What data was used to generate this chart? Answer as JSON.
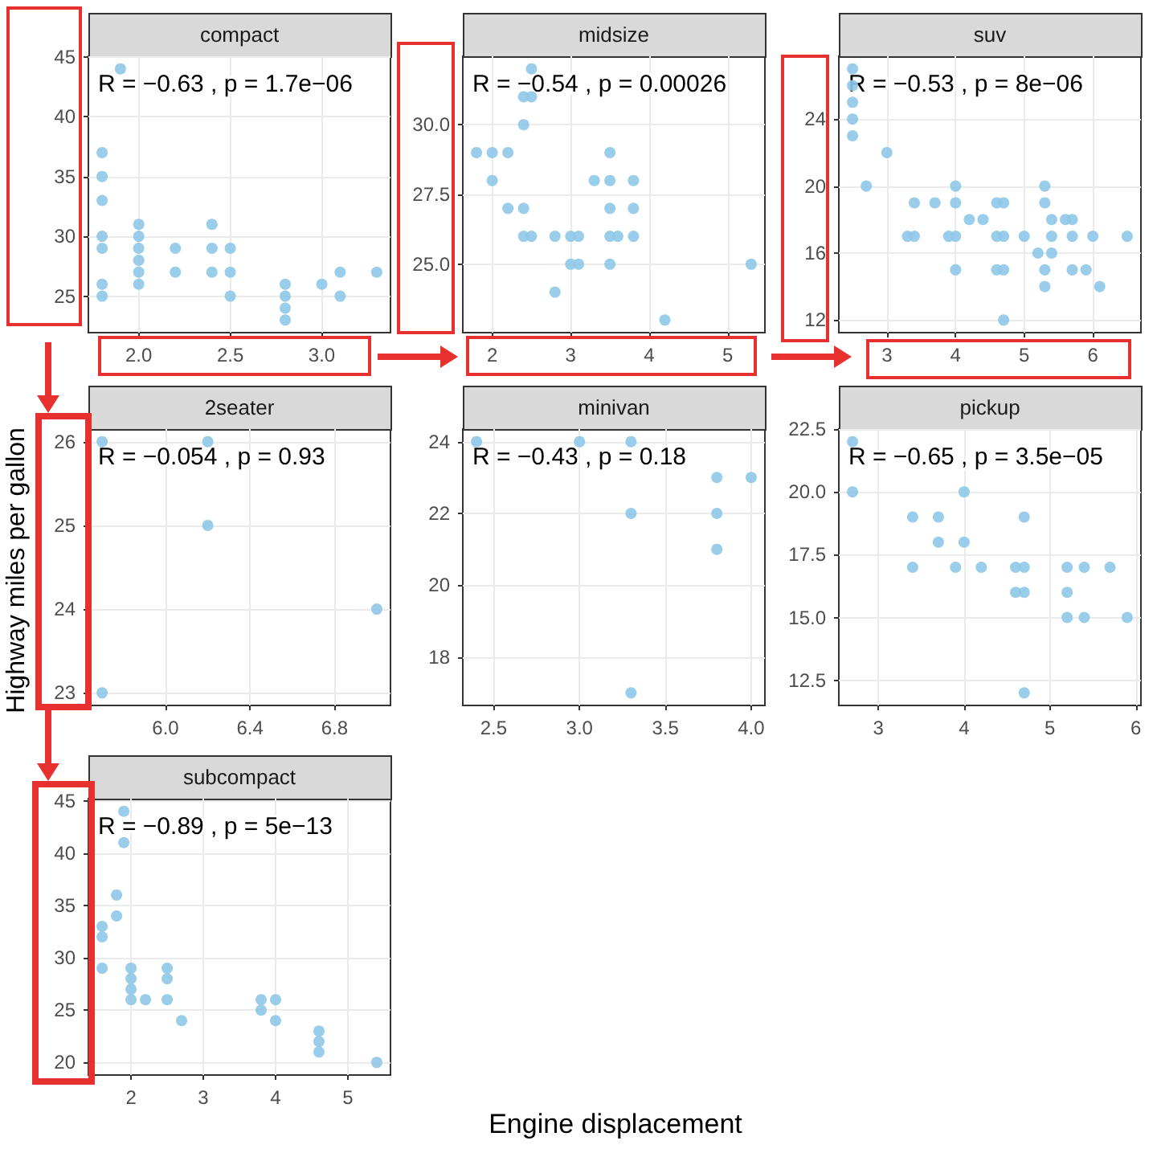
{
  "chart_data": [
    {
      "type": "scatter",
      "title": "compact",
      "annotations": [
        "R = −0.63 , p = 1.7e−06"
      ],
      "color": "#8ec8e8",
      "marker": "circle",
      "grid": true,
      "x": [
        1.8,
        1.8,
        1.8,
        1.8,
        1.8,
        1.8,
        1.8,
        1.9,
        2.0,
        2.0,
        2.0,
        2.0,
        2.0,
        2.0,
        2.2,
        2.2,
        2.4,
        2.4,
        2.4,
        2.5,
        2.5,
        2.5,
        2.8,
        2.8,
        2.8,
        2.8,
        3.0,
        3.1,
        3.1,
        3.3
      ],
      "values": [
        37,
        35,
        33,
        30,
        29,
        26,
        25,
        44,
        31,
        30,
        29,
        28,
        27,
        26,
        29,
        27,
        31,
        29,
        27,
        29,
        27,
        25,
        26,
        25,
        24,
        23,
        26,
        27,
        25,
        27
      ],
      "xlim": [
        1.725,
        3.375
      ],
      "ylim": [
        21.95,
        45.05
      ],
      "xticks": [
        {
          "value": 2,
          "label": "2.0"
        },
        2.5,
        {
          "value": 3,
          "label": "3.0"
        }
      ],
      "yticks": [
        25,
        30,
        35,
        40,
        45
      ]
    },
    {
      "type": "scatter",
      "title": "midsize",
      "annotations": [
        "R = −0.54 , p = 0.00026"
      ],
      "color": "#8ec8e8",
      "marker": "circle",
      "grid": true,
      "x": [
        1.8,
        2.0,
        2.2,
        2.0,
        2.2,
        2.4,
        2.4,
        2.5,
        2.4,
        2.4,
        2.5,
        2.5,
        2.8,
        2.8,
        3.0,
        3.1,
        3.0,
        3.1,
        3.3,
        3.5,
        3.5,
        3.5,
        3.5,
        3.6,
        3.5,
        3.8,
        3.8,
        3.8,
        4.2,
        5.3
      ],
      "values": [
        29,
        29,
        29,
        28,
        27,
        27,
        26,
        26,
        30,
        31,
        31,
        32,
        26,
        24,
        26,
        26,
        25,
        25,
        28,
        29,
        28,
        27,
        26,
        26,
        25,
        28,
        27,
        26,
        23,
        25
      ],
      "xlim": [
        1.625,
        5.475
      ],
      "ylim": [
        22.55,
        32.45
      ],
      "xticks": [
        2,
        3,
        4,
        5
      ],
      "yticks": [
        {
          "value": 25,
          "label": "25.0"
        },
        27.5,
        {
          "value": 30,
          "label": "30.0"
        }
      ]
    },
    {
      "type": "scatter",
      "title": "suv",
      "annotations": [
        "R = −0.53 , p = 8e−06"
      ],
      "color": "#8ec8e8",
      "marker": "circle",
      "grid": true,
      "x": [
        2.5,
        2.5,
        2.5,
        2.5,
        2.5,
        3.0,
        2.7,
        3.4,
        3.7,
        4.0,
        4.0,
        4.6,
        4.7,
        5.3,
        5.3,
        4.2,
        4.4,
        5.4,
        5.6,
        5.7,
        3.3,
        3.4,
        3.9,
        4.0,
        4.6,
        4.7,
        5.0,
        5.4,
        5.7,
        6.0,
        6.5,
        5.2,
        5.4,
        4.0,
        4.6,
        4.7,
        5.3,
        5.7,
        5.9,
        5.3,
        6.1,
        4.7
      ],
      "values": [
        27,
        26,
        25,
        24,
        23,
        22,
        20,
        19,
        19,
        20,
        19,
        19,
        19,
        20,
        19,
        18,
        18,
        18,
        18,
        18,
        17,
        17,
        17,
        17,
        17,
        17,
        17,
        17,
        17,
        17,
        17,
        16,
        16,
        15,
        15,
        15,
        15,
        15,
        15,
        14,
        14,
        12
      ],
      "xlim": [
        2.3,
        6.7
      ],
      "ylim": [
        11.25,
        27.75
      ],
      "xticks": [
        3,
        4,
        5,
        6
      ],
      "yticks": [
        12,
        16,
        20,
        24
      ]
    },
    {
      "type": "scatter",
      "title": "2seater",
      "annotations": [
        "R = −0.054 , p = 0.93"
      ],
      "ylabel": "Highway miles per gallon",
      "color": "#8ec8e8",
      "marker": "circle",
      "grid": true,
      "x": [
        5.7,
        6.2,
        6.2,
        7.0,
        5.7
      ],
      "values": [
        26,
        26,
        25,
        24,
        23
      ],
      "xlim": [
        5.635,
        7.065
      ],
      "ylim": [
        22.85,
        26.15
      ],
      "xticks": [
        {
          "value": 6,
          "label": "6.0"
        },
        6.4,
        6.8
      ],
      "yticks": [
        23,
        24,
        25,
        26
      ]
    },
    {
      "type": "scatter",
      "title": "minivan",
      "annotations": [
        "R = −0.43 , p = 0.18"
      ],
      "xlabel": "Engine displacement",
      "color": "#8ec8e8",
      "marker": "circle",
      "grid": true,
      "x": [
        2.4,
        3.0,
        3.3,
        3.3,
        3.8,
        4.0,
        3.8,
        3.8,
        3.3
      ],
      "values": [
        24,
        24,
        24,
        22,
        23,
        23,
        22,
        21,
        17
      ],
      "xlim": [
        2.32,
        4.08
      ],
      "ylim": [
        16.65,
        24.35
      ],
      "xticks": [
        2.5,
        {
          "value": 3,
          "label": "3.0"
        },
        3.5,
        {
          "value": 4,
          "label": "4.0"
        }
      ],
      "yticks": [
        18,
        20,
        22,
        24
      ]
    },
    {
      "type": "scatter",
      "title": "pickup",
      "annotations": [
        "R = −0.65 , p = 3.5e−05"
      ],
      "color": "#8ec8e8",
      "marker": "circle",
      "grid": true,
      "x": [
        2.7,
        2.7,
        4.0,
        3.4,
        3.7,
        4.7,
        3.7,
        4.0,
        3.4,
        3.9,
        4.2,
        4.6,
        4.7,
        5.2,
        5.4,
        5.7,
        4.6,
        4.7,
        5.2,
        5.2,
        5.4,
        5.9,
        4.7
      ],
      "values": [
        22,
        20,
        20,
        19,
        19,
        19,
        18,
        18,
        17,
        17,
        17,
        17,
        17,
        17,
        17,
        17,
        16,
        16,
        16,
        15,
        15,
        15,
        12
      ],
      "xlim": [
        2.54,
        6.06
      ],
      "ylim": [
        11.5,
        22.5
      ],
      "xticks": [
        3,
        4,
        5,
        6
      ],
      "yticks": [
        12.5,
        {
          "value": 15,
          "label": "15.0"
        },
        17.5,
        {
          "value": 20,
          "label": "20.0"
        },
        22.5
      ]
    },
    {
      "type": "scatter",
      "title": "subcompact",
      "annotations": [
        "R = −0.89 , p = 5e−13"
      ],
      "color": "#8ec8e8",
      "marker": "circle",
      "grid": true,
      "x": [
        1.9,
        1.9,
        1.8,
        1.8,
        1.6,
        1.6,
        1.6,
        2.0,
        2.0,
        2.0,
        2.0,
        2.2,
        2.5,
        2.5,
        2.5,
        2.7,
        3.8,
        3.8,
        4.0,
        4.0,
        4.6,
        4.6,
        4.6,
        5.4
      ],
      "values": [
        44,
        41,
        36,
        34,
        33,
        32,
        29,
        29,
        28,
        27,
        26,
        26,
        29,
        28,
        26,
        24,
        26,
        25,
        26,
        24,
        23,
        22,
        21,
        20
      ],
      "xlim": [
        1.41,
        5.59
      ],
      "ylim": [
        18.8,
        45.2
      ],
      "xticks": [
        2,
        3,
        4,
        5
      ],
      "yticks": [
        20,
        25,
        30,
        35,
        40,
        45
      ]
    }
  ]
}
